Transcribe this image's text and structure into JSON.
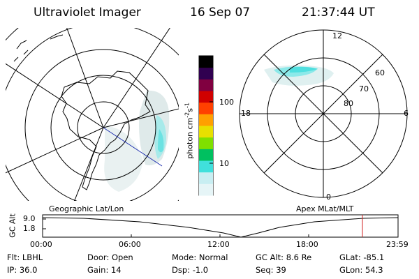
{
  "header": {
    "instrument": "Ultraviolet Imager",
    "date": "16 Sep 07",
    "time": "21:37:44 UT"
  },
  "colorbar": {
    "label": "photon cm",
    "label_sup1": "-2",
    "label_mid": "s",
    "label_sup2": "-1",
    "ticks": [
      "100",
      "10"
    ],
    "scale": "log",
    "colors": [
      "#e6f5f7",
      "#c8eef2",
      "#40e0dc",
      "#00c060",
      "#80e000",
      "#e8e000",
      "#ffa000",
      "#ff4000",
      "#d00000",
      "#800040",
      "#300050",
      "#000000"
    ]
  },
  "geo_panel": {
    "caption": "Geographic Lat/Lon"
  },
  "apex_panel": {
    "caption": "Apex MLat/MLT",
    "lat_labels": [
      "60",
      "70",
      "80"
    ],
    "mlt_labels": {
      "top": "12",
      "left": "18",
      "right": "6",
      "bottom": "0"
    }
  },
  "altitude_plot": {
    "ylabel": "GC Alt",
    "yticks": [
      "9.0",
      "1.8"
    ],
    "xticks": [
      "00:00",
      "06:00",
      "12:00",
      "18:00",
      "23:59"
    ],
    "current_marker_color": "#d02020"
  },
  "status": {
    "row1": [
      {
        "label": "Flt:",
        "value": "LBHL"
      },
      {
        "label": "Door:",
        "value": "Open"
      },
      {
        "label": "Mode:",
        "value": "Normal"
      },
      {
        "label": "GC Alt:",
        "value": "8.6 Re"
      },
      {
        "label": "GLat:",
        "value": "-85.1"
      }
    ],
    "row2": [
      {
        "label": "IP:",
        "value": "36.0"
      },
      {
        "label": "Gain:",
        "value": "14"
      },
      {
        "label": "Dsp:",
        "value": "-1.0"
      },
      {
        "label": "Seq:",
        "value": "39"
      },
      {
        "label": "GLon:",
        "value": "54.3"
      }
    ]
  }
}
